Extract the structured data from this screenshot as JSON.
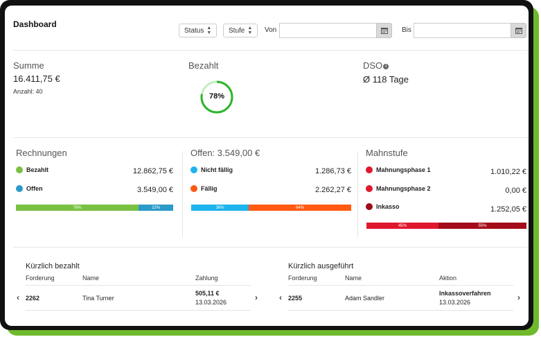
{
  "header": {
    "title": "Dashboard",
    "filters": {
      "status_label": "Status",
      "stufe_label": "Stufe",
      "von_label": "Von",
      "bis_label": "Bis"
    }
  },
  "kpis": {
    "summe": {
      "label": "Summe",
      "value": "16.411,75 €",
      "count_label": "Anzahl:",
      "count_value": "40"
    },
    "bezahlt": {
      "label": "Bezahlt",
      "percent_text": "78%",
      "percent": 78,
      "color": "#2cb52c",
      "track_color": "#c7eac0"
    },
    "dso": {
      "label": "DSO",
      "info_icon": "info-icon",
      "value": "Ø 118 Tage"
    }
  },
  "rechnungen": {
    "title": "Rechnungen",
    "rows": [
      {
        "label": "Bezahlt",
        "value": "12.862,75 €",
        "color": "#7ac143"
      },
      {
        "label": "Offen",
        "value": "3.549,00 €",
        "color": "#2a9bc8"
      }
    ],
    "bar": [
      {
        "label": "78%",
        "percent": 78,
        "color": "#7ac143"
      },
      {
        "label": "22%",
        "percent": 22,
        "color": "#2a9bc8"
      }
    ]
  },
  "offen": {
    "title": "Offen: 3.549,00 €",
    "rows": [
      {
        "label": "Nicht fällig",
        "value": "1.286,73 €",
        "color": "#1fb3ee"
      },
      {
        "label": "Fällig",
        "value": "2.262,27 €",
        "color": "#ff5a12"
      }
    ],
    "bar": [
      {
        "label": "36%",
        "percent": 36,
        "color": "#1fb3ee"
      },
      {
        "label": "64%",
        "percent": 64,
        "color": "#ff5a12"
      }
    ]
  },
  "mahnstufe": {
    "title": "Mahnstufe",
    "rows": [
      {
        "label": "Mahnungsphase 1",
        "value": "1.010,22 €",
        "color": "#e0182d"
      },
      {
        "label": "Mahnungsphase 2",
        "value": "0,00 €",
        "color": "#e0182d"
      },
      {
        "label": "Inkasso",
        "value": "1.252,05 €",
        "color": "#9e0b16"
      }
    ],
    "bar": [
      {
        "label": "45%",
        "percent": 45,
        "color": "#e0182d"
      },
      {
        "label": "55%",
        "percent": 55,
        "color": "#a30c18"
      }
    ]
  },
  "recent_paid": {
    "title": "Kürzlich bezahlt",
    "headers": [
      "Forderung",
      "Name",
      "Zahlung"
    ],
    "row": {
      "forderung": "2262",
      "name": "Tina Turner",
      "amount": "505,11 €",
      "date": "13.03.2026"
    }
  },
  "recent_executed": {
    "title": "Kürzlich ausgeführt",
    "headers": [
      "Forderung",
      "Name",
      "Aktion"
    ],
    "row": {
      "forderung": "2255",
      "name": "Adam Sandler",
      "action": "Inkassoverfahren",
      "date": "13.03.2026"
    }
  }
}
